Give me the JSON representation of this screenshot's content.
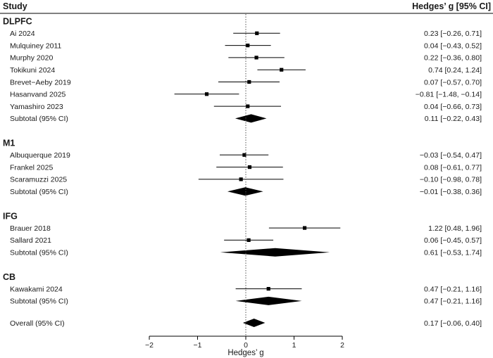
{
  "chart_data": {
    "type": "forest",
    "header_left": "Study",
    "header_right": "Hedges’ g [95% CI]",
    "xlabel": "Hedges’ g",
    "xlim": [
      -2,
      2
    ],
    "xticks": [
      -2,
      -1,
      0,
      1,
      2
    ],
    "tick_labels": [
      "−2",
      "−1",
      "0",
      "1",
      "2"
    ],
    "reference_line": 0,
    "groups": [
      {
        "name": "DLPFC",
        "studies": [
          {
            "study": "Ai 2024",
            "g": 0.23,
            "lo": -0.26,
            "hi": 0.71,
            "ci_text": "0.23 [−0.26, 0.71]"
          },
          {
            "study": "Mulquiney 2011",
            "g": 0.04,
            "lo": -0.43,
            "hi": 0.52,
            "ci_text": "0.04 [−0.43, 0.52]"
          },
          {
            "study": "Murphy 2020",
            "g": 0.22,
            "lo": -0.36,
            "hi": 0.8,
            "ci_text": "0.22 [−0.36, 0.80]"
          },
          {
            "study": "Tokikuni 2024",
            "g": 0.74,
            "lo": 0.24,
            "hi": 1.24,
            "ci_text": "0.74 [0.24, 1.24]"
          },
          {
            "study": "Brevet−Aeby 2019",
            "g": 0.07,
            "lo": -0.57,
            "hi": 0.7,
            "ci_text": "0.07 [−0.57, 0.70]"
          },
          {
            "study": "Hasanvand 2025",
            "g": -0.81,
            "lo": -1.48,
            "hi": -0.14,
            "ci_text": "−0.81 [−1.48, −0.14]"
          },
          {
            "study": "Yamashiro 2023",
            "g": 0.04,
            "lo": -0.66,
            "hi": 0.73,
            "ci_text": "0.04 [−0.66, 0.73]"
          }
        ],
        "subtotal": {
          "label": "Subtotal (95% CI)",
          "g": 0.11,
          "lo": -0.22,
          "hi": 0.43,
          "ci_text": "0.11 [−0.22, 0.43]"
        }
      },
      {
        "name": "M1",
        "studies": [
          {
            "study": "Albuquerque 2019",
            "g": -0.03,
            "lo": -0.54,
            "hi": 0.47,
            "ci_text": "−0.03 [−0.54, 0.47]"
          },
          {
            "study": "Frankel 2025",
            "g": 0.08,
            "lo": -0.61,
            "hi": 0.77,
            "ci_text": "0.08 [−0.61, 0.77]"
          },
          {
            "study": "Scaramuzzi 2025",
            "g": -0.1,
            "lo": -0.98,
            "hi": 0.78,
            "ci_text": "−0.10 [−0.98, 0.78]"
          }
        ],
        "subtotal": {
          "label": "Subtotal (95% CI)",
          "g": -0.01,
          "lo": -0.38,
          "hi": 0.36,
          "ci_text": "−0.01 [−0.38, 0.36]"
        }
      },
      {
        "name": "IFG",
        "studies": [
          {
            "study": "Brauer 2018",
            "g": 1.22,
            "lo": 0.48,
            "hi": 1.96,
            "ci_text": "1.22 [0.48, 1.96]"
          },
          {
            "study": "Sallard 2021",
            "g": 0.06,
            "lo": -0.45,
            "hi": 0.57,
            "ci_text": "0.06 [−0.45, 0.57]"
          }
        ],
        "subtotal": {
          "label": "Subtotal (95% CI)",
          "g": 0.61,
          "lo": -0.53,
          "hi": 1.74,
          "ci_text": "0.61 [−0.53, 1.74]"
        }
      },
      {
        "name": "CB",
        "studies": [
          {
            "study": "Kawakami 2024",
            "g": 0.47,
            "lo": -0.21,
            "hi": 1.16,
            "ci_text": "0.47 [−0.21, 1.16]"
          }
        ],
        "subtotal": {
          "label": "Subtotal (95% CI)",
          "g": 0.47,
          "lo": -0.21,
          "hi": 1.16,
          "ci_text": "0.47 [−0.21, 1.16]"
        }
      }
    ],
    "overall": {
      "label": "Overall (95% CI)",
      "g": 0.17,
      "lo": -0.06,
      "hi": 0.4,
      "ci_text": "0.17 [−0.06, 0.40]"
    }
  }
}
